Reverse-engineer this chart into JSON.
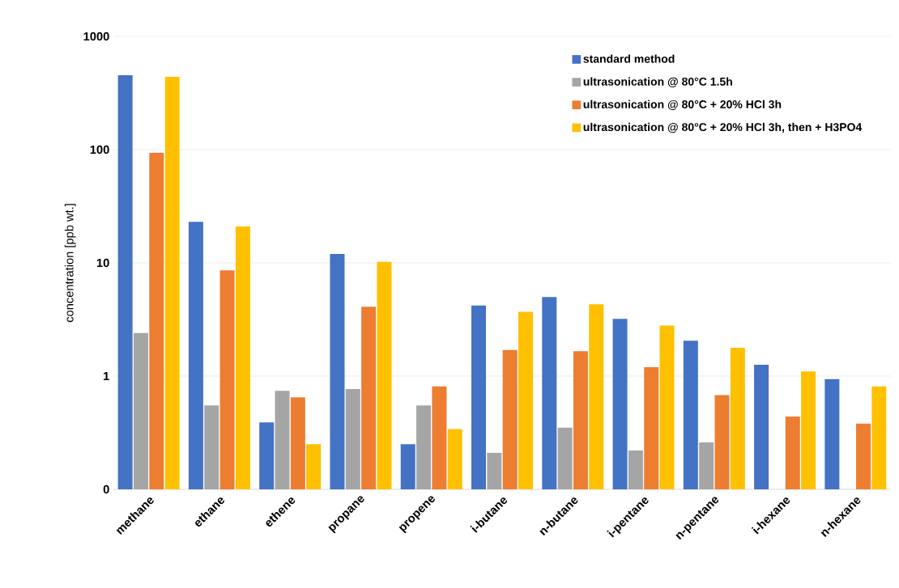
{
  "chart_data": {
    "type": "bar",
    "ylabel": "concentration [ppb wt.]",
    "categories": [
      "methane",
      "ethane",
      "ethene",
      "propane",
      "propene",
      "i-butane",
      "n-butane",
      "i-pentane",
      "n-pentane",
      "i-hexane",
      "n-hexane"
    ],
    "series": [
      {
        "name": "standard method",
        "color": "#4472c4",
        "values": [
          454,
          23,
          0.39,
          12,
          0.25,
          4.2,
          5.0,
          3.2,
          2.05,
          1.26,
          0.94
        ]
      },
      {
        "name": "ultrasonication @ 80°C 1.5h",
        "color": "#a5a5a5",
        "values": [
          2.4,
          0.55,
          0.74,
          0.77,
          0.55,
          0.21,
          0.35,
          0.22,
          0.26,
          null,
          null
        ]
      },
      {
        "name": "ultrasonication @ 80°C + 20% HCl 3h",
        "color": "#ed7d31",
        "values": [
          94,
          8.6,
          0.65,
          4.1,
          0.81,
          1.7,
          1.66,
          1.2,
          0.68,
          0.44,
          0.38
        ]
      },
      {
        "name": "ultrasonication @ 80°C + 20% HCl 3h, then + H3PO4",
        "color": "#ffc000",
        "values": [
          440,
          21,
          0.25,
          10.2,
          0.34,
          3.7,
          4.3,
          2.8,
          1.78,
          1.1,
          0.81
        ]
      }
    ],
    "log": "y",
    "ylim": [
      0.1,
      1000
    ],
    "yticks": [
      {
        "value": 0.1,
        "label": "0"
      },
      1,
      10,
      100,
      1000
    ],
    "grid": "y",
    "legend": "top right"
  }
}
